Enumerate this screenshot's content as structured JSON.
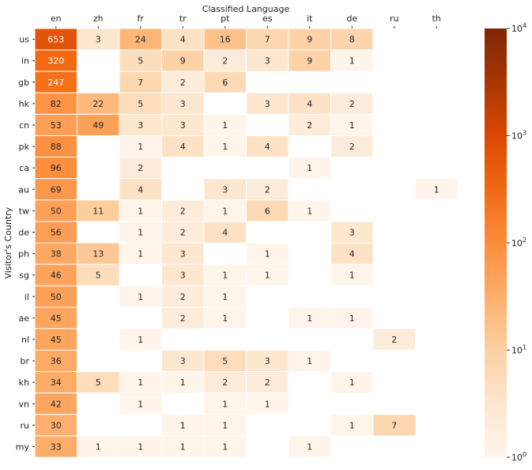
{
  "chart_data": {
    "type": "heatmap",
    "title": "",
    "xlabel": "Classified Language",
    "ylabel": "Visitor's Country",
    "x_categories": [
      "en",
      "zh",
      "fr",
      "tr",
      "pt",
      "es",
      "it",
      "de",
      "ru",
      "th"
    ],
    "y_categories": [
      "us",
      "in",
      "gb",
      "hk",
      "cn",
      "pk",
      "ca",
      "au",
      "tw",
      "de",
      "ph",
      "sg",
      "il",
      "ae",
      "nl",
      "br",
      "kh",
      "vn",
      "ru",
      "my"
    ],
    "values": [
      [
        653,
        3,
        24,
        4,
        16,
        7,
        9,
        8,
        null,
        null
      ],
      [
        320,
        null,
        5,
        9,
        2,
        3,
        9,
        1,
        null,
        null
      ],
      [
        247,
        null,
        7,
        2,
        6,
        null,
        null,
        null,
        null,
        null
      ],
      [
        82,
        22,
        5,
        3,
        null,
        3,
        4,
        2,
        null,
        null
      ],
      [
        53,
        49,
        3,
        3,
        1,
        null,
        2,
        1,
        null,
        null
      ],
      [
        88,
        null,
        1,
        4,
        1,
        4,
        null,
        2,
        null,
        null
      ],
      [
        96,
        null,
        2,
        null,
        null,
        null,
        1,
        null,
        null,
        null
      ],
      [
        69,
        null,
        4,
        null,
        3,
        2,
        null,
        null,
        null,
        1
      ],
      [
        50,
        11,
        1,
        2,
        1,
        6,
        1,
        null,
        null,
        null
      ],
      [
        56,
        null,
        1,
        2,
        4,
        null,
        null,
        3,
        null,
        null
      ],
      [
        38,
        13,
        1,
        3,
        null,
        1,
        null,
        4,
        null,
        null
      ],
      [
        46,
        5,
        null,
        3,
        1,
        1,
        null,
        1,
        null,
        null
      ],
      [
        50,
        null,
        1,
        2,
        1,
        null,
        null,
        null,
        null,
        null
      ],
      [
        45,
        null,
        null,
        2,
        1,
        null,
        1,
        1,
        null,
        null
      ],
      [
        45,
        null,
        1,
        null,
        null,
        null,
        null,
        null,
        2,
        null
      ],
      [
        36,
        null,
        null,
        3,
        5,
        3,
        1,
        null,
        null,
        null
      ],
      [
        34,
        5,
        1,
        1,
        2,
        2,
        null,
        1,
        null,
        null
      ],
      [
        42,
        null,
        1,
        null,
        1,
        1,
        null,
        null,
        null,
        null
      ],
      [
        30,
        null,
        null,
        1,
        1,
        null,
        null,
        1,
        7,
        null
      ],
      [
        33,
        1,
        1,
        1,
        1,
        null,
        1,
        null,
        null,
        null
      ]
    ],
    "color_scale": "log",
    "colormap": "Oranges",
    "colorbar": {
      "range": [
        1,
        10000
      ],
      "ticks": [
        {
          "value": 1,
          "base": "10",
          "exp": "0"
        },
        {
          "value": 10,
          "base": "10",
          "exp": "1"
        },
        {
          "value": 100,
          "base": "10",
          "exp": "2"
        },
        {
          "value": 1000,
          "base": "10",
          "exp": "3"
        },
        {
          "value": 10000,
          "base": "10",
          "exp": "4"
        }
      ]
    },
    "colors": {
      "low": "#fff5eb",
      "high": "#7f2704",
      "cell_gap": "#ffffff"
    }
  }
}
